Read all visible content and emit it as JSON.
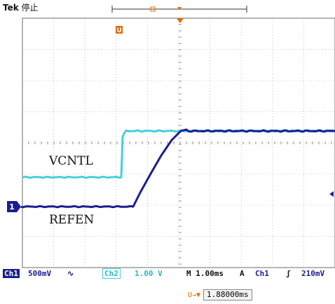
{
  "header": {
    "brand": "Tek",
    "state": "停止"
  },
  "waveform_labels": {
    "ch2_name": "VCNTL",
    "ch1_name": "REFEN"
  },
  "ch1_marker": "1",
  "trigger_marker": "U",
  "status": {
    "ch1_badge": "Ch1",
    "ch1_scale": "500mV",
    "ch1_coupling": "∿",
    "ch2_badge": "Ch2",
    "ch2_scale": "1.00 V",
    "timebase": "M 1.00ms",
    "acq_mode": "A",
    "trig_source": "Ch1",
    "trig_slope": "ʃ",
    "trig_level": "210mV"
  },
  "trigger_readout": {
    "label": "U→▼",
    "value": "1.88000ms"
  },
  "colors": {
    "ch1": "#1a1f8f",
    "ch2": "#44d0dc",
    "grid": "#9a9a9a",
    "frame": "#6b6b6b",
    "trigger_marker": "#e06a00"
  }
}
